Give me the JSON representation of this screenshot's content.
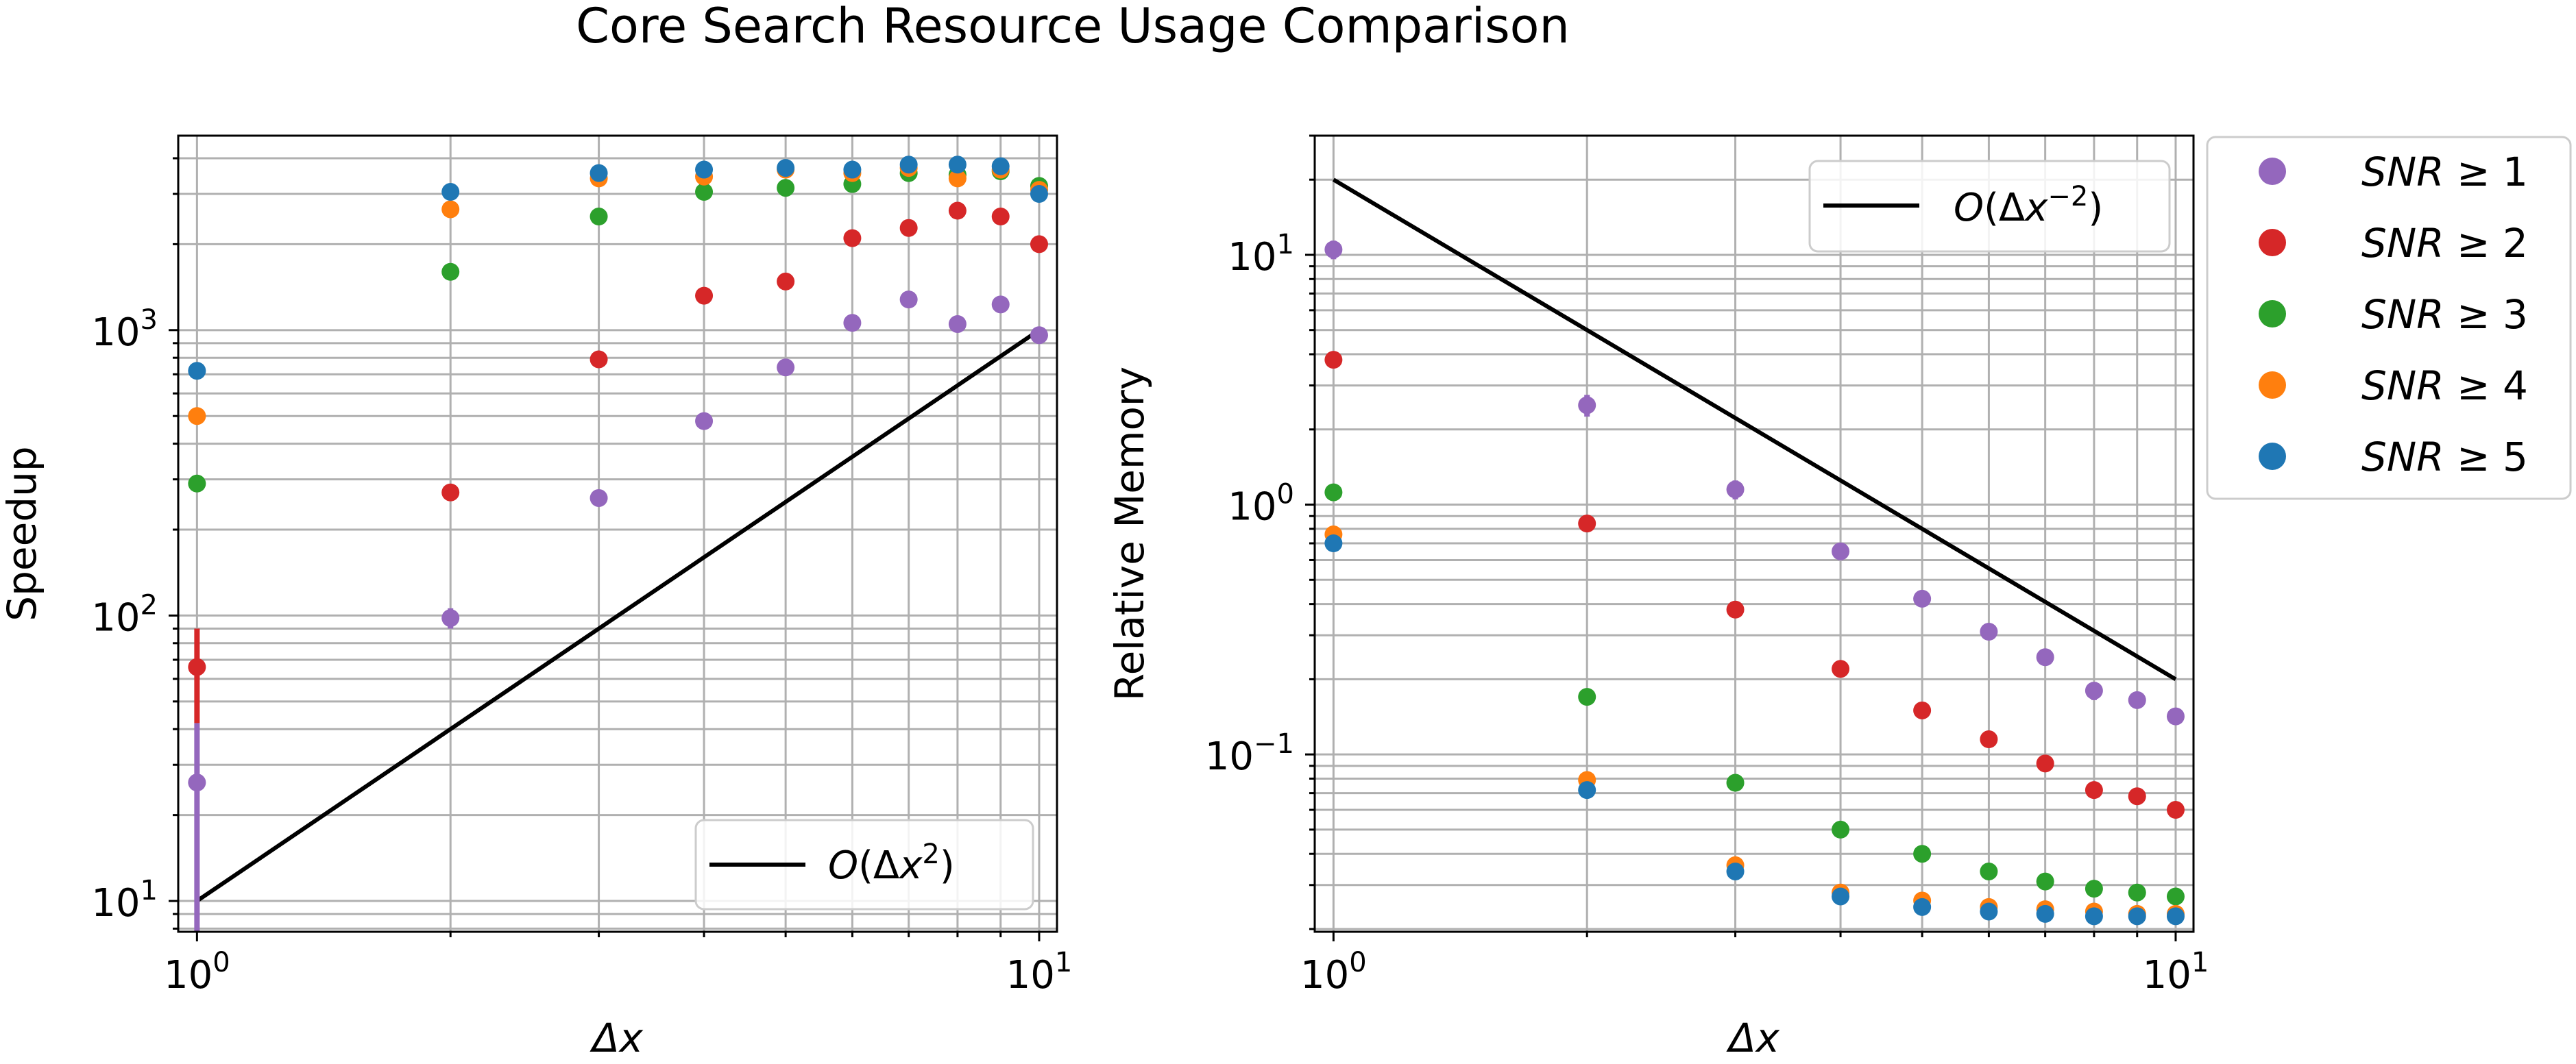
{
  "figure": {
    "title": "Core Search Resource Usage Comparison"
  },
  "legend": {
    "placement": "outside-right-top",
    "entries": [
      {
        "label": "SNR ≥ 1",
        "color": "#9467bd"
      },
      {
        "label": "SNR ≥ 2",
        "color": "#d62728"
      },
      {
        "label": "SNR ≥ 3",
        "color": "#2ca02c"
      },
      {
        "label": "SNR ≥ 4",
        "color": "#ff7f0e"
      },
      {
        "label": "SNR ≥ 5",
        "color": "#1f77b4"
      }
    ]
  },
  "chart_data": [
    {
      "type": "scatter",
      "title": "",
      "xlabel": "Δx",
      "ylabel": "Speedup",
      "xscale": "log",
      "yscale": "log",
      "xlim": [
        0.95,
        10.5
      ],
      "ylim": [
        7.8,
        4800
      ],
      "grid": true,
      "xticks": [
        {
          "value": 1,
          "label": "10^0"
        },
        {
          "value": 10,
          "label": "10^1"
        }
      ],
      "yticks": [
        {
          "value": 10,
          "label": "10^1"
        },
        {
          "value": 100,
          "label": "10^2"
        },
        {
          "value": 1000,
          "label": "10^3"
        }
      ],
      "x": [
        1,
        2,
        3,
        4,
        5,
        6,
        7,
        8,
        9,
        10
      ],
      "series": [
        {
          "name": "SNR ≥ 1",
          "color": "#9467bd",
          "values": [
            26,
            98,
            258,
            480,
            740,
            1060,
            1280,
            1050,
            1230,
            960
          ],
          "error_low": [
            7.8,
            90,
            248,
            465,
            720,
            1040,
            1255,
            1030,
            1205,
            940
          ],
          "error_high": [
            42,
            106,
            268,
            495,
            760,
            1080,
            1300,
            1070,
            1255,
            980
          ]
        },
        {
          "name": "SNR ≥ 2",
          "color": "#d62728",
          "values": [
            66,
            270,
            790,
            1320,
            1480,
            2100,
            2280,
            2620,
            2500,
            2000
          ],
          "error_low": [
            42,
            262,
            775,
            1295,
            1455,
            2075,
            2250,
            2590,
            2470,
            1975
          ],
          "error_high": [
            90,
            278,
            805,
            1345,
            1505,
            2125,
            2310,
            2650,
            2530,
            2025
          ]
        },
        {
          "name": "SNR ≥ 3",
          "color": "#2ca02c",
          "values": [
            290,
            1600,
            2500,
            3050,
            3150,
            3250,
            3550,
            3500,
            3600,
            3200
          ],
          "error_low": [
            285,
            1580,
            2470,
            3010,
            3110,
            3210,
            3500,
            3450,
            3550,
            3160
          ],
          "error_high": [
            295,
            1620,
            2530,
            3090,
            3190,
            3290,
            3600,
            3550,
            3650,
            3240
          ]
        },
        {
          "name": "SNR ≥ 4",
          "color": "#ff7f0e",
          "values": [
            500,
            2650,
            3400,
            3450,
            3650,
            3550,
            3700,
            3400,
            3650,
            3100
          ],
          "error_low": [
            495,
            2620,
            3360,
            3410,
            3610,
            3510,
            3650,
            3360,
            3600,
            3060
          ],
          "error_high": [
            505,
            2680,
            3440,
            3490,
            3690,
            3590,
            3750,
            3440,
            3700,
            3140
          ]
        },
        {
          "name": "SNR ≥ 5",
          "color": "#1f77b4",
          "values": [
            720,
            3050,
            3550,
            3650,
            3700,
            3650,
            3800,
            3800,
            3750,
            3000
          ],
          "error_low": [
            712,
            3020,
            3510,
            3610,
            3660,
            3610,
            3750,
            3750,
            3700,
            2960
          ],
          "error_high": [
            728,
            3080,
            3590,
            3690,
            3740,
            3690,
            3850,
            3850,
            3800,
            3040
          ]
        }
      ],
      "reference_line": {
        "label": "O(Δx^2)",
        "x": [
          1,
          10
        ],
        "values": [
          10,
          1000
        ],
        "color": "#000000"
      },
      "legend": {
        "placement": "lower-right",
        "entries": [
          {
            "label": "O(Δx^2)"
          }
        ]
      }
    },
    {
      "type": "scatter",
      "title": "",
      "xlabel": "Δx",
      "ylabel": "Relative Memory",
      "xscale": "log",
      "yscale": "log",
      "xlim": [
        0.95,
        10.5
      ],
      "ylim": [
        0.0195,
        30
      ],
      "grid": true,
      "xticks": [
        {
          "value": 1,
          "label": "10^0"
        },
        {
          "value": 10,
          "label": "10^1"
        }
      ],
      "yticks": [
        {
          "value": 0.1,
          "label": "10^-1"
        },
        {
          "value": 1,
          "label": "10^0"
        },
        {
          "value": 10,
          "label": "10^1"
        }
      ],
      "x": [
        1,
        2,
        3,
        4,
        5,
        6,
        7,
        8,
        9,
        10
      ],
      "series": [
        {
          "name": "SNR ≥ 1",
          "color": "#9467bd",
          "values": [
            10.5,
            2.5,
            1.15,
            0.65,
            0.42,
            0.31,
            0.245,
            0.18,
            0.165,
            0.142
          ],
          "error_low": [
            9.6,
            2.25,
            1.05,
            0.6,
            0.39,
            0.29,
            0.23,
            0.165,
            0.155,
            0.134
          ],
          "error_high": [
            11.4,
            2.75,
            1.25,
            0.7,
            0.45,
            0.33,
            0.26,
            0.195,
            0.175,
            0.15
          ]
        },
        {
          "name": "SNR ≥ 2",
          "color": "#d62728",
          "values": [
            3.8,
            0.84,
            0.38,
            0.22,
            0.15,
            0.115,
            0.092,
            0.072,
            0.068,
            0.06
          ],
          "error_low": [
            3.6,
            0.78,
            0.36,
            0.205,
            0.143,
            0.11,
            0.088,
            0.069,
            0.065,
            0.058
          ],
          "error_high": [
            4.0,
            0.9,
            0.4,
            0.235,
            0.157,
            0.12,
            0.096,
            0.075,
            0.071,
            0.062
          ]
        },
        {
          "name": "SNR ≥ 3",
          "color": "#2ca02c",
          "values": [
            1.12,
            0.17,
            0.077,
            0.05,
            0.04,
            0.034,
            0.031,
            0.029,
            0.028,
            0.027
          ],
          "error_low": [
            1.08,
            0.165,
            0.075,
            0.049,
            0.039,
            0.033,
            0.0303,
            0.0284,
            0.0274,
            0.0264
          ],
          "error_high": [
            1.16,
            0.175,
            0.079,
            0.051,
            0.041,
            0.035,
            0.0317,
            0.0296,
            0.0286,
            0.0276
          ]
        },
        {
          "name": "SNR ≥ 4",
          "color": "#ff7f0e",
          "values": [
            0.76,
            0.079,
            0.036,
            0.028,
            0.026,
            0.0245,
            0.024,
            0.0235,
            0.023,
            0.023
          ],
          "error_low": [
            0.74,
            0.077,
            0.035,
            0.0274,
            0.0255,
            0.024,
            0.0235,
            0.023,
            0.0225,
            0.0225
          ],
          "error_high": [
            0.78,
            0.081,
            0.037,
            0.0286,
            0.0265,
            0.025,
            0.0245,
            0.024,
            0.0235,
            0.0235
          ]
        },
        {
          "name": "SNR ≥ 5",
          "color": "#1f77b4",
          "values": [
            0.7,
            0.072,
            0.034,
            0.027,
            0.0245,
            0.0235,
            0.023,
            0.0225,
            0.0225,
            0.0225
          ],
          "error_low": [
            0.68,
            0.07,
            0.033,
            0.0264,
            0.024,
            0.023,
            0.0225,
            0.022,
            0.022,
            0.022
          ],
          "error_high": [
            0.72,
            0.074,
            0.035,
            0.0276,
            0.025,
            0.024,
            0.0235,
            0.023,
            0.023,
            0.023
          ]
        }
      ],
      "reference_line": {
        "label": "O(Δx^-2)",
        "x": [
          1,
          10
        ],
        "values": [
          20,
          0.2
        ],
        "color": "#000000"
      },
      "legend": {
        "placement": "upper-right",
        "entries": [
          {
            "label": "O(Δx^-2)"
          }
        ]
      }
    }
  ]
}
